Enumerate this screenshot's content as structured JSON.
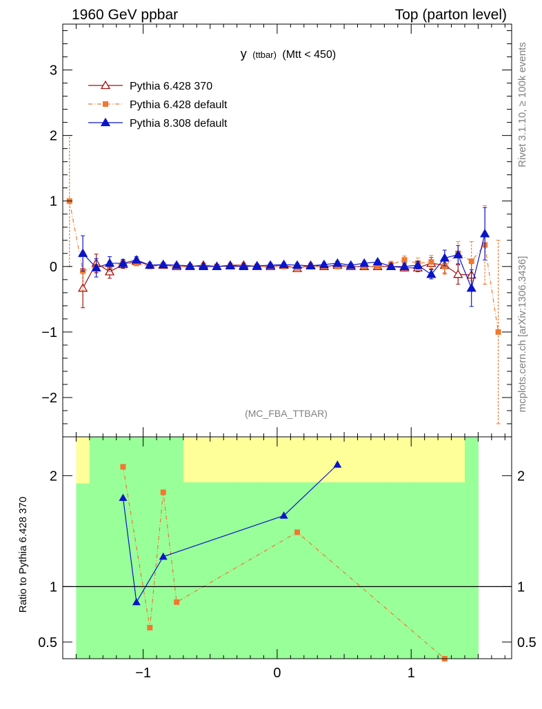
{
  "header": {
    "left": "1960 GeV ppbar",
    "right": "Top (parton level)"
  },
  "side": {
    "rivet": "Rivet 3.1.10, ≥ 100k events",
    "mcplots": "mcplots.cern.ch [arXiv:1306.3436]"
  },
  "chart_data": [
    {
      "type": "line",
      "title_main": "y",
      "title_small": "(ttbar)",
      "title_tail": "(Mtt < 450)",
      "watermark": "(MC_FBA_TTBAR)",
      "xlim": [
        -1.6,
        1.75
      ],
      "ylim": [
        -2.6,
        3.7
      ],
      "yticks": [
        -2,
        -1,
        0,
        1,
        2,
        3
      ],
      "xticks": [
        -1,
        0,
        1
      ],
      "series": [
        {
          "name": "Pythia 6.428 370",
          "color": "#a01010",
          "marker": "open-triangle",
          "x": [
            -1.45,
            -1.35,
            -1.25,
            -1.15,
            -1.05,
            -0.95,
            -0.85,
            -0.75,
            -0.65,
            -0.55,
            -0.45,
            -0.35,
            -0.25,
            -0.15,
            -0.05,
            0.05,
            0.15,
            0.25,
            0.35,
            0.45,
            0.55,
            0.65,
            0.75,
            0.85,
            0.95,
            1.05,
            1.15,
            1.25,
            1.35,
            1.45
          ],
          "y": [
            -0.33,
            0.05,
            -0.08,
            0.03,
            0.08,
            0.02,
            0.02,
            0.0,
            0.0,
            0.02,
            0.0,
            0.02,
            0.02,
            0.0,
            0.0,
            0.02,
            -0.03,
            0.02,
            0.0,
            0.02,
            0.0,
            0.0,
            0.0,
            0.0,
            -0.02,
            -0.02,
            0.05,
            0.02,
            -0.12,
            -0.13
          ],
          "err": [
            0.3,
            0.14,
            0.1,
            0.06,
            0.05,
            0.04,
            0.03,
            0.03,
            0.03,
            0.03,
            0.03,
            0.03,
            0.03,
            0.03,
            0.03,
            0.03,
            0.03,
            0.03,
            0.03,
            0.03,
            0.03,
            0.03,
            0.03,
            0.04,
            0.05,
            0.06,
            0.09,
            0.12,
            0.15,
            0.22
          ]
        },
        {
          "name": "Pythia 6.428 default",
          "color": "#f07830",
          "marker": "square",
          "x": [
            -1.55,
            -1.45,
            -1.35,
            -1.25,
            -1.15,
            -1.05,
            -0.95,
            -0.85,
            -0.75,
            -0.65,
            -0.55,
            -0.45,
            -0.35,
            -0.25,
            -0.15,
            -0.05,
            0.05,
            0.15,
            0.25,
            0.35,
            0.45,
            0.55,
            0.65,
            0.75,
            0.85,
            0.95,
            1.05,
            1.15,
            1.25,
            1.35,
            1.45,
            1.55,
            1.65
          ],
          "y": [
            1.0,
            -0.07,
            0.0,
            0.0,
            0.05,
            0.05,
            0.0,
            0.02,
            0.0,
            0.0,
            0.0,
            0.0,
            0.0,
            0.0,
            0.0,
            0.0,
            0.0,
            -0.02,
            0.0,
            0.0,
            0.0,
            0.0,
            0.0,
            0.0,
            0.03,
            0.1,
            0.05,
            0.07,
            0.0,
            0.2,
            0.08,
            0.33,
            -1.0
          ],
          "err": [
            1.0,
            0.3,
            0.1,
            0.08,
            0.05,
            0.04,
            0.03,
            0.03,
            0.03,
            0.03,
            0.03,
            0.03,
            0.03,
            0.03,
            0.03,
            0.03,
            0.03,
            0.03,
            0.03,
            0.03,
            0.03,
            0.03,
            0.03,
            0.04,
            0.05,
            0.06,
            0.08,
            0.1,
            0.12,
            0.18,
            0.3,
            0.6,
            1.4
          ]
        },
        {
          "name": "Pythia 8.308 default",
          "color": "#0a14c8",
          "marker": "filled-triangle",
          "x": [
            -1.45,
            -1.35,
            -1.25,
            -1.15,
            -1.05,
            -0.95,
            -0.85,
            -0.75,
            -0.65,
            -0.55,
            -0.45,
            -0.35,
            -0.25,
            -0.15,
            -0.05,
            0.05,
            0.15,
            0.25,
            0.35,
            0.45,
            0.55,
            0.65,
            0.75,
            0.85,
            0.95,
            1.05,
            1.15,
            1.25,
            1.35,
            1.45,
            1.55
          ],
          "y": [
            0.2,
            -0.02,
            0.05,
            0.05,
            0.1,
            0.02,
            0.03,
            0.02,
            0.01,
            0.0,
            0.0,
            0.01,
            0.0,
            0.01,
            0.02,
            0.03,
            0.02,
            0.01,
            0.03,
            0.05,
            0.02,
            0.05,
            0.07,
            0.0,
            0.0,
            0.02,
            -0.12,
            0.13,
            0.18,
            -0.33,
            0.5
          ],
          "err": [
            0.27,
            0.14,
            0.1,
            0.06,
            0.05,
            0.04,
            0.03,
            0.03,
            0.03,
            0.03,
            0.03,
            0.03,
            0.03,
            0.03,
            0.03,
            0.03,
            0.03,
            0.03,
            0.03,
            0.03,
            0.03,
            0.03,
            0.03,
            0.04,
            0.05,
            0.06,
            0.07,
            0.12,
            0.14,
            0.28,
            0.4
          ]
        }
      ]
    },
    {
      "type": "line",
      "ylabel": "Ratio to Pythia 6.428 370",
      "ylim": [
        0.35,
        2.35
      ],
      "yticks": [
        0.5,
        1,
        2
      ],
      "xticks": [
        -1,
        0,
        1
      ],
      "band_x_edges": [
        -1.5,
        -1.4,
        -1.3,
        -1.2,
        -1.1,
        -1.0,
        -0.9,
        -0.8,
        -0.7,
        -0.6,
        -0.5,
        -0.4,
        -0.3,
        -0.2,
        -0.1,
        0.0,
        0.1,
        0.2,
        0.3,
        0.4,
        0.5,
        0.6,
        0.7,
        0.8,
        0.9,
        1.0,
        1.1,
        1.2,
        1.3,
        1.4,
        1.5
      ],
      "band_green": [
        [
          0.35,
          1.93
        ],
        [
          0.35,
          2.35
        ],
        [
          0.35,
          2.35
        ],
        [
          0.35,
          2.35
        ],
        [
          0.35,
          2.35
        ],
        [
          0.35,
          2.35
        ],
        [
          0.35,
          2.35
        ],
        [
          0.35,
          2.35
        ],
        [
          0.35,
          1.94
        ],
        [
          0.35,
          1.94
        ],
        [
          0.35,
          1.94
        ],
        [
          0.35,
          1.94
        ],
        [
          0.35,
          1.94
        ],
        [
          0.35,
          1.94
        ],
        [
          0.35,
          1.94
        ],
        [
          0.35,
          1.94
        ],
        [
          0.35,
          1.94
        ],
        [
          0.35,
          1.94
        ],
        [
          0.35,
          1.94
        ],
        [
          0.35,
          1.94
        ],
        [
          0.35,
          1.94
        ],
        [
          0.35,
          1.94
        ],
        [
          0.35,
          1.94
        ],
        [
          0.35,
          1.94
        ],
        [
          0.35,
          1.94
        ],
        [
          0.35,
          1.94
        ],
        [
          0.35,
          1.94
        ],
        [
          0.35,
          1.94
        ],
        [
          0.35,
          1.94
        ],
        [
          0.35,
          2.35
        ]
      ],
      "band_yellow": [
        [
          1.93,
          2.35
        ],
        [
          2.3,
          2.35
        ],
        [
          2.3,
          2.35
        ],
        [
          2.35,
          2.35
        ],
        [
          2.35,
          2.35
        ],
        [
          2.35,
          2.35
        ],
        [
          2.35,
          2.35
        ],
        [
          2.35,
          2.35
        ],
        [
          1.94,
          2.35
        ],
        [
          1.94,
          2.35
        ],
        [
          1.94,
          2.35
        ],
        [
          1.94,
          2.35
        ],
        [
          1.94,
          2.35
        ],
        [
          1.94,
          2.35
        ],
        [
          1.94,
          2.35
        ],
        [
          1.94,
          2.35
        ],
        [
          1.94,
          2.35
        ],
        [
          1.94,
          2.35
        ],
        [
          1.94,
          2.35
        ],
        [
          1.94,
          2.35
        ],
        [
          1.94,
          2.35
        ],
        [
          1.94,
          2.35
        ],
        [
          1.94,
          2.35
        ],
        [
          1.94,
          2.35
        ],
        [
          1.94,
          2.35
        ],
        [
          1.94,
          2.35
        ],
        [
          1.94,
          2.35
        ],
        [
          1.94,
          2.35
        ],
        [
          1.94,
          2.35
        ],
        [
          2.3,
          2.35
        ]
      ],
      "series": [
        {
          "name": "Pythia 6.428 default",
          "x": [
            -1.15,
            -0.95,
            -0.85,
            -0.75,
            0.15,
            1.25
          ],
          "y": [
            2.08,
            0.63,
            1.85,
            0.86,
            1.49,
            0.35
          ]
        },
        {
          "name": "Pythia 8.308 default",
          "x": [
            -1.15,
            -1.05,
            -0.85,
            0.05,
            0.45
          ],
          "y": [
            1.8,
            0.86,
            1.27,
            1.64,
            2.1
          ]
        }
      ]
    }
  ]
}
